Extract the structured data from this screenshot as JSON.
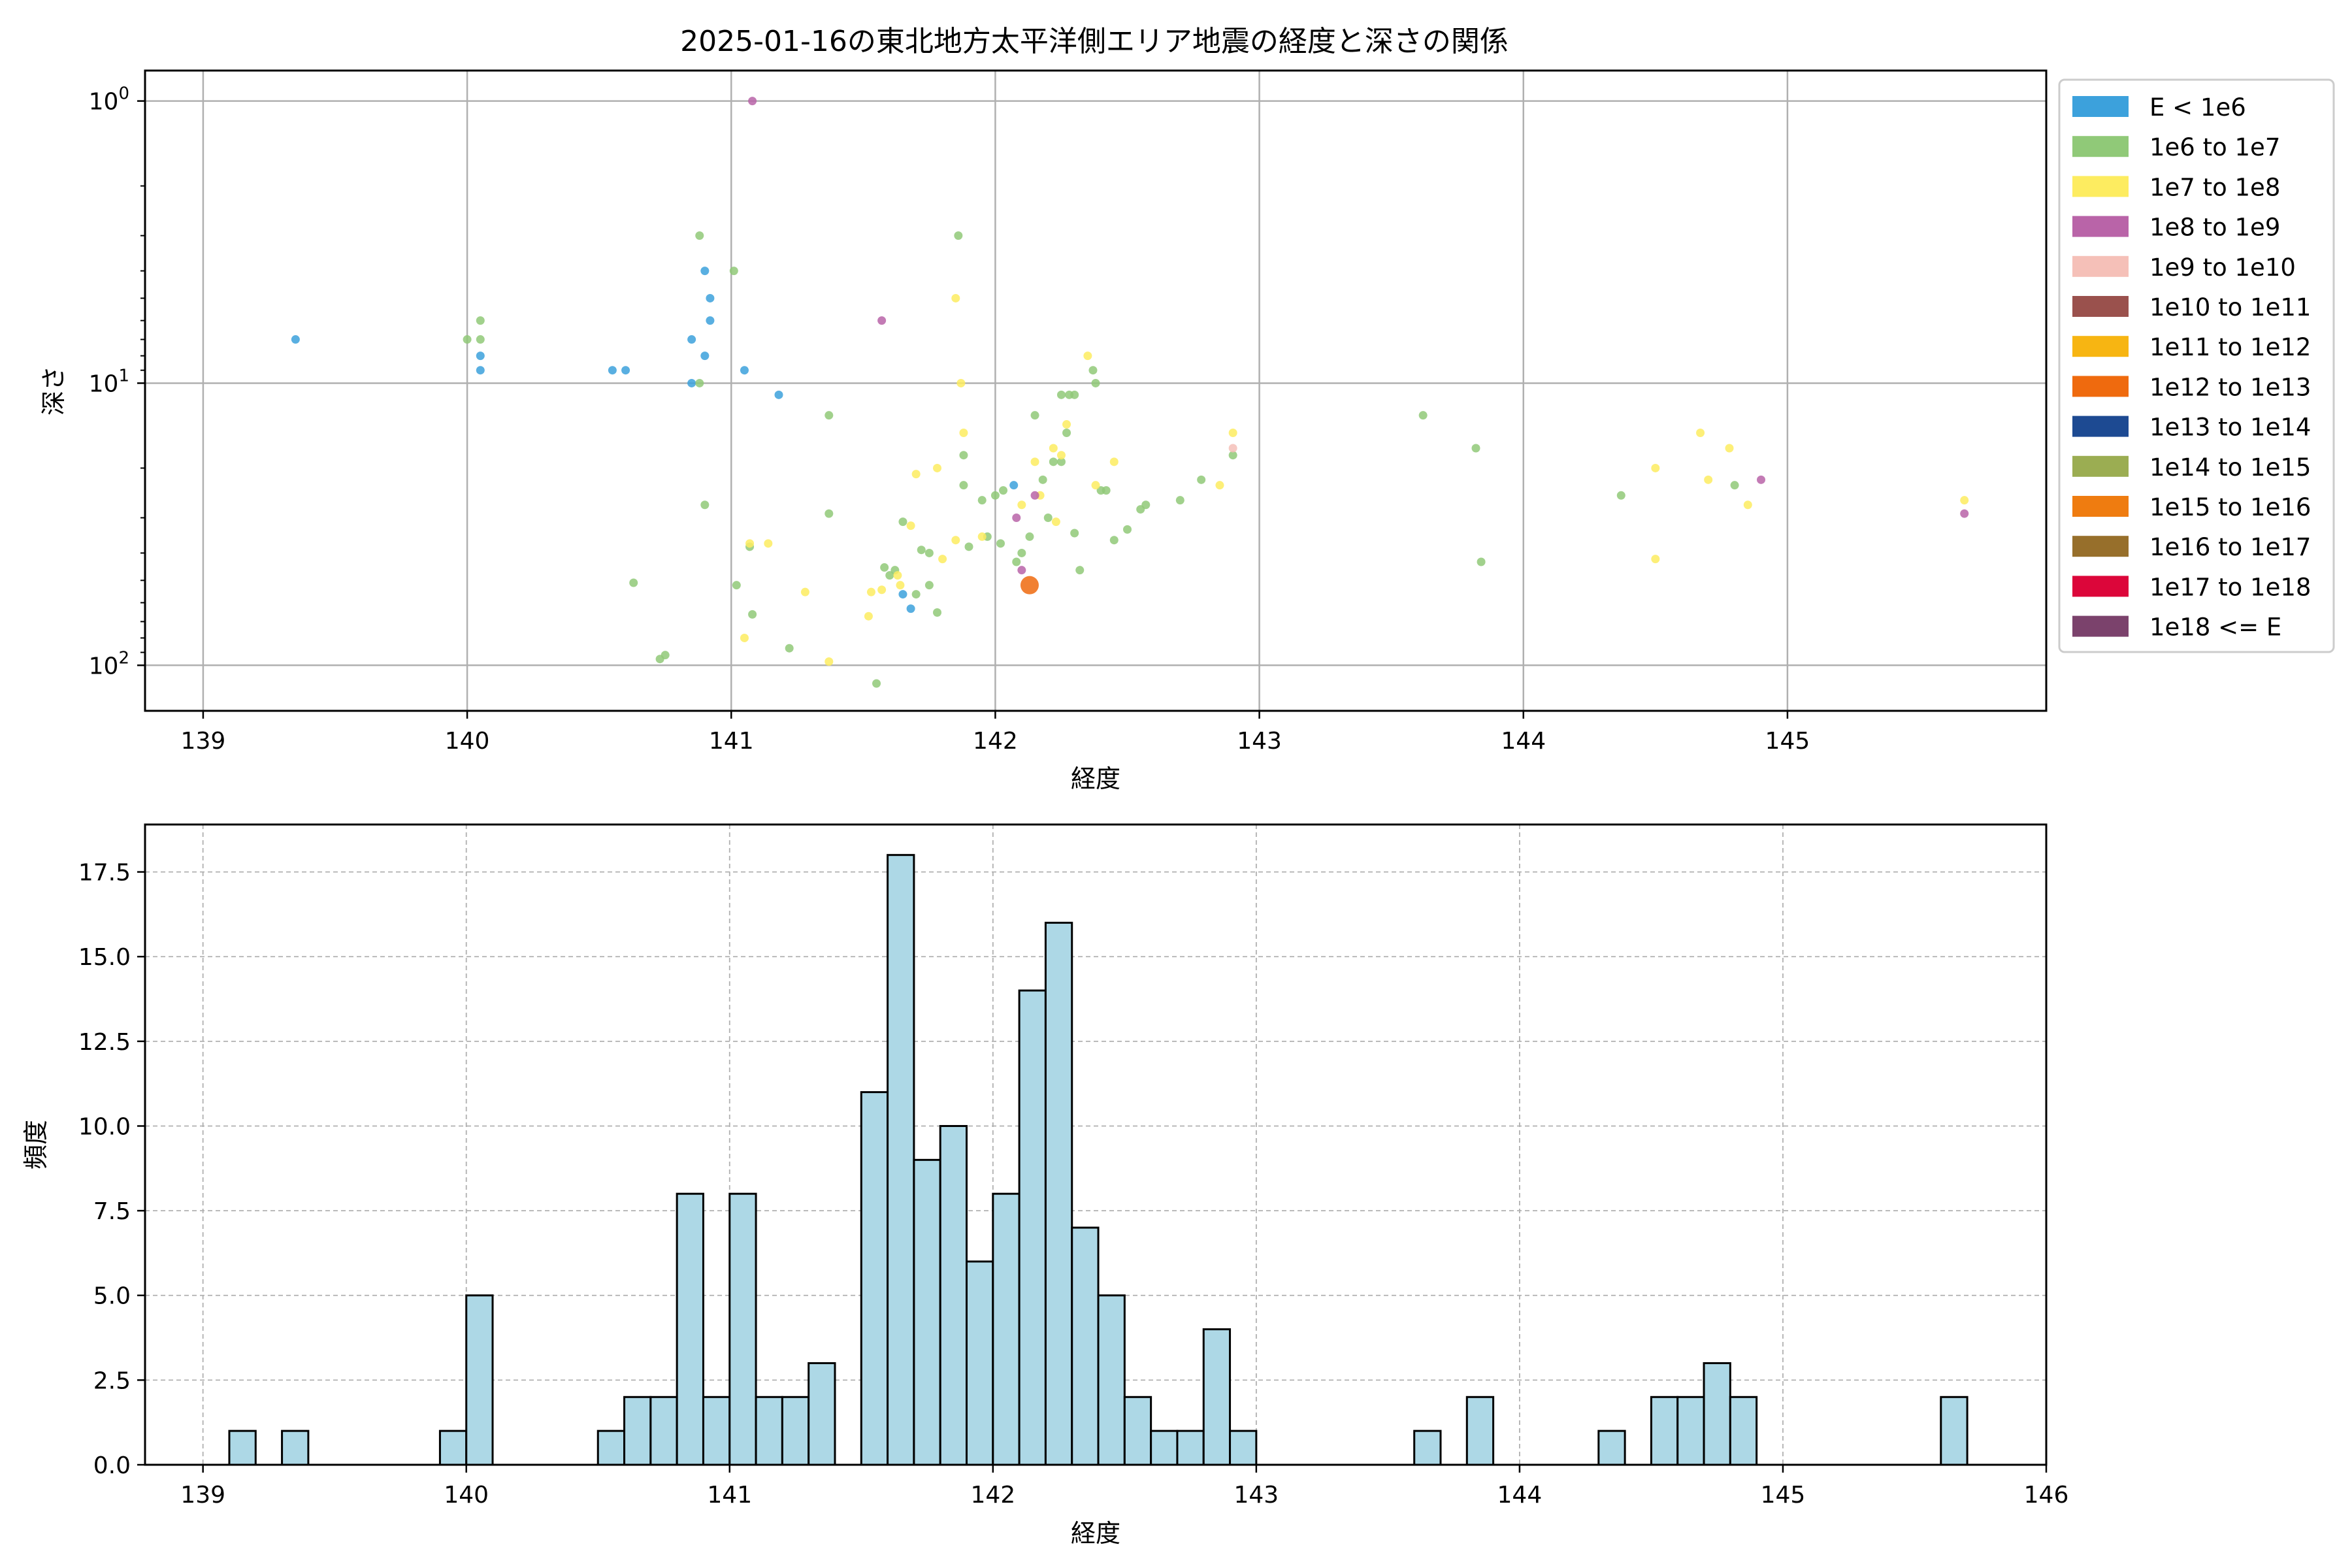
{
  "title": "2025-01-16の東北地方太平洋側エリア地震の経度と深さの関係",
  "colors": {
    "hist_fill": "#add8e6",
    "hist_edge": "#000000",
    "grid": "#b0b0b0",
    "axis": "#000000"
  },
  "chart_data": [
    {
      "type": "scatter",
      "xlabel": "経度",
      "ylabel": "深さ",
      "yscale": "log",
      "yinverted": true,
      "xlim": [
        138.78,
        145.98
      ],
      "ylim": [
        145,
        0.78
      ],
      "xticks": [
        139,
        140,
        141,
        142,
        143,
        144,
        145
      ],
      "yticks": [
        {
          "value": 1,
          "base": "10",
          "exp": "0"
        },
        {
          "value": 10,
          "base": "10",
          "exp": "1"
        },
        {
          "value": 100,
          "base": "10",
          "exp": "2"
        }
      ],
      "grid": true,
      "legend": {
        "placement": "outside-right",
        "entries": [
          {
            "label": "E < 1e6",
            "color": "#3ca1dc"
          },
          {
            "label": "1e6 to 1e7",
            "color": "#90c978"
          },
          {
            "label": "1e7 to 1e8",
            "color": "#fdec60"
          },
          {
            "label": "1e8 to 1e9",
            "color": "#b964a8"
          },
          {
            "label": "1e9 to 1e10",
            "color": "#f5c0b8"
          },
          {
            "label": "1e10 to 1e11",
            "color": "#9a514d"
          },
          {
            "label": "1e11 to 1e12",
            "color": "#f7b512"
          },
          {
            "label": "1e12 to 1e13",
            "color": "#ef6a0e"
          },
          {
            "label": "1e13 to 1e14",
            "color": "#1d4a92"
          },
          {
            "label": "1e14 to 1e15",
            "color": "#9bad52"
          },
          {
            "label": "1e15 to 1e16",
            "color": "#ef7c10"
          },
          {
            "label": "1e16 to 1e17",
            "color": "#976f2b"
          },
          {
            "label": "1e17 to 1e18",
            "color": "#dc063a"
          },
          {
            "label": "1e18 <= E",
            "color": "#7b426c"
          }
        ]
      },
      "points": [
        {
          "x": 139.35,
          "y": 7,
          "c": 0
        },
        {
          "x": 140.05,
          "y": 8,
          "c": 0
        },
        {
          "x": 140.05,
          "y": 9,
          "c": 0
        },
        {
          "x": 140.55,
          "y": 9,
          "c": 0
        },
        {
          "x": 140.6,
          "y": 9,
          "c": 0
        },
        {
          "x": 140.85,
          "y": 7,
          "c": 0
        },
        {
          "x": 140.85,
          "y": 10,
          "c": 0
        },
        {
          "x": 140.9,
          "y": 4,
          "c": 0
        },
        {
          "x": 140.92,
          "y": 5,
          "c": 0
        },
        {
          "x": 140.92,
          "y": 6,
          "c": 0
        },
        {
          "x": 140.9,
          "y": 8,
          "c": 0
        },
        {
          "x": 141.05,
          "y": 9,
          "c": 0
        },
        {
          "x": 141.18,
          "y": 11,
          "c": 0
        },
        {
          "x": 142.07,
          "y": 23,
          "c": 0
        },
        {
          "x": 141.65,
          "y": 56,
          "c": 0
        },
        {
          "x": 141.68,
          "y": 63,
          "c": 0
        },
        {
          "x": 140.0,
          "y": 7,
          "c": 1
        },
        {
          "x": 140.05,
          "y": 6,
          "c": 1
        },
        {
          "x": 140.05,
          "y": 7,
          "c": 1
        },
        {
          "x": 140.88,
          "y": 3,
          "c": 1
        },
        {
          "x": 141.01,
          "y": 4,
          "c": 1
        },
        {
          "x": 141.86,
          "y": 3,
          "c": 1
        },
        {
          "x": 140.88,
          "y": 10,
          "c": 1
        },
        {
          "x": 140.9,
          "y": 27,
          "c": 1
        },
        {
          "x": 140.63,
          "y": 51,
          "c": 1
        },
        {
          "x": 141.02,
          "y": 52,
          "c": 1
        },
        {
          "x": 141.07,
          "y": 38,
          "c": 1
        },
        {
          "x": 141.08,
          "y": 66,
          "c": 1
        },
        {
          "x": 141.22,
          "y": 87,
          "c": 1
        },
        {
          "x": 140.73,
          "y": 95,
          "c": 1
        },
        {
          "x": 140.75,
          "y": 92,
          "c": 1
        },
        {
          "x": 141.37,
          "y": 13,
          "c": 1
        },
        {
          "x": 141.37,
          "y": 29,
          "c": 1
        },
        {
          "x": 141.55,
          "y": 116,
          "c": 1
        },
        {
          "x": 141.58,
          "y": 45,
          "c": 1
        },
        {
          "x": 141.6,
          "y": 48,
          "c": 1
        },
        {
          "x": 141.62,
          "y": 46,
          "c": 1
        },
        {
          "x": 141.65,
          "y": 31,
          "c": 1
        },
        {
          "x": 141.7,
          "y": 56,
          "c": 1
        },
        {
          "x": 141.72,
          "y": 39,
          "c": 1
        },
        {
          "x": 141.75,
          "y": 40,
          "c": 1
        },
        {
          "x": 141.75,
          "y": 52,
          "c": 1
        },
        {
          "x": 141.78,
          "y": 65,
          "c": 1
        },
        {
          "x": 141.88,
          "y": 18,
          "c": 1
        },
        {
          "x": 141.88,
          "y": 23,
          "c": 1
        },
        {
          "x": 141.9,
          "y": 38,
          "c": 1
        },
        {
          "x": 141.95,
          "y": 26,
          "c": 1
        },
        {
          "x": 141.97,
          "y": 35,
          "c": 1
        },
        {
          "x": 142.0,
          "y": 25,
          "c": 1
        },
        {
          "x": 142.02,
          "y": 37,
          "c": 1
        },
        {
          "x": 142.03,
          "y": 24,
          "c": 1
        },
        {
          "x": 142.08,
          "y": 43,
          "c": 1
        },
        {
          "x": 142.1,
          "y": 40,
          "c": 1
        },
        {
          "x": 142.13,
          "y": 35,
          "c": 1
        },
        {
          "x": 142.15,
          "y": 13,
          "c": 1
        },
        {
          "x": 142.18,
          "y": 22,
          "c": 1
        },
        {
          "x": 142.2,
          "y": 30,
          "c": 1
        },
        {
          "x": 142.22,
          "y": 19,
          "c": 1
        },
        {
          "x": 142.25,
          "y": 11,
          "c": 1
        },
        {
          "x": 142.25,
          "y": 19,
          "c": 1
        },
        {
          "x": 142.27,
          "y": 15,
          "c": 1
        },
        {
          "x": 142.28,
          "y": 11,
          "c": 1
        },
        {
          "x": 142.3,
          "y": 11,
          "c": 1
        },
        {
          "x": 142.3,
          "y": 34,
          "c": 1
        },
        {
          "x": 142.32,
          "y": 46,
          "c": 1
        },
        {
          "x": 142.37,
          "y": 9,
          "c": 1
        },
        {
          "x": 142.38,
          "y": 10,
          "c": 1
        },
        {
          "x": 142.4,
          "y": 24,
          "c": 1
        },
        {
          "x": 142.42,
          "y": 24,
          "c": 1
        },
        {
          "x": 142.45,
          "y": 36,
          "c": 1
        },
        {
          "x": 142.5,
          "y": 33,
          "c": 1
        },
        {
          "x": 142.55,
          "y": 28,
          "c": 1
        },
        {
          "x": 142.57,
          "y": 27,
          "c": 1
        },
        {
          "x": 142.7,
          "y": 26,
          "c": 1
        },
        {
          "x": 142.78,
          "y": 22,
          "c": 1
        },
        {
          "x": 142.9,
          "y": 18,
          "c": 1
        },
        {
          "x": 143.62,
          "y": 13,
          "c": 1
        },
        {
          "x": 143.82,
          "y": 17,
          "c": 1
        },
        {
          "x": 143.84,
          "y": 43,
          "c": 1
        },
        {
          "x": 144.37,
          "y": 25,
          "c": 1
        },
        {
          "x": 144.8,
          "y": 23,
          "c": 1
        },
        {
          "x": 141.07,
          "y": 37,
          "c": 2
        },
        {
          "x": 141.14,
          "y": 37,
          "c": 2
        },
        {
          "x": 141.05,
          "y": 80,
          "c": 2
        },
        {
          "x": 141.28,
          "y": 55,
          "c": 2
        },
        {
          "x": 141.37,
          "y": 97,
          "c": 2
        },
        {
          "x": 141.52,
          "y": 67,
          "c": 2
        },
        {
          "x": 141.53,
          "y": 55,
          "c": 2
        },
        {
          "x": 141.57,
          "y": 54,
          "c": 2
        },
        {
          "x": 141.63,
          "y": 48,
          "c": 2
        },
        {
          "x": 141.64,
          "y": 52,
          "c": 2
        },
        {
          "x": 141.68,
          "y": 32,
          "c": 2
        },
        {
          "x": 141.7,
          "y": 21,
          "c": 2
        },
        {
          "x": 141.78,
          "y": 20,
          "c": 2
        },
        {
          "x": 141.8,
          "y": 42,
          "c": 2
        },
        {
          "x": 141.85,
          "y": 36,
          "c": 2
        },
        {
          "x": 141.85,
          "y": 5,
          "c": 2
        },
        {
          "x": 141.87,
          "y": 10,
          "c": 2
        },
        {
          "x": 141.88,
          "y": 15,
          "c": 2
        },
        {
          "x": 141.95,
          "y": 35,
          "c": 2
        },
        {
          "x": 142.1,
          "y": 27,
          "c": 2
        },
        {
          "x": 142.15,
          "y": 19,
          "c": 2
        },
        {
          "x": 142.17,
          "y": 25,
          "c": 2
        },
        {
          "x": 142.22,
          "y": 17,
          "c": 2
        },
        {
          "x": 142.23,
          "y": 31,
          "c": 2
        },
        {
          "x": 142.25,
          "y": 18,
          "c": 2
        },
        {
          "x": 142.27,
          "y": 14,
          "c": 2
        },
        {
          "x": 142.35,
          "y": 8,
          "c": 2
        },
        {
          "x": 142.38,
          "y": 23,
          "c": 2
        },
        {
          "x": 142.45,
          "y": 19,
          "c": 2
        },
        {
          "x": 142.85,
          "y": 23,
          "c": 2
        },
        {
          "x": 142.9,
          "y": 15,
          "c": 2
        },
        {
          "x": 144.5,
          "y": 20,
          "c": 2
        },
        {
          "x": 144.5,
          "y": 42,
          "c": 2
        },
        {
          "x": 144.67,
          "y": 15,
          "c": 2
        },
        {
          "x": 144.7,
          "y": 22,
          "c": 2
        },
        {
          "x": 144.78,
          "y": 17,
          "c": 2
        },
        {
          "x": 144.85,
          "y": 27,
          "c": 2
        },
        {
          "x": 145.67,
          "y": 26,
          "c": 2
        },
        {
          "x": 141.08,
          "y": 1,
          "c": 3
        },
        {
          "x": 141.57,
          "y": 6,
          "c": 3
        },
        {
          "x": 142.08,
          "y": 30,
          "c": 3
        },
        {
          "x": 142.1,
          "y": 46,
          "c": 3
        },
        {
          "x": 142.15,
          "y": 25,
          "c": 3
        },
        {
          "x": 144.9,
          "y": 22,
          "c": 3
        },
        {
          "x": 145.67,
          "y": 29,
          "c": 3
        },
        {
          "x": 142.9,
          "y": 17,
          "c": 4
        },
        {
          "x": 142.13,
          "y": 52,
          "c": 7,
          "large": true
        }
      ]
    },
    {
      "type": "bar",
      "subtype": "histogram",
      "xlabel": "経度",
      "ylabel": "頻度",
      "xlim": [
        138.78,
        146.0
      ],
      "ylim": [
        0,
        18.9
      ],
      "xticks": [
        139,
        140,
        141,
        142,
        143,
        144,
        145,
        146
      ],
      "yticks": [
        0.0,
        2.5,
        5.0,
        7.5,
        10.0,
        12.5,
        15.0,
        17.5
      ],
      "grid": true,
      "bin_width": 0.1,
      "bins": [
        {
          "x0": 139.1,
          "count": 1
        },
        {
          "x0": 139.3,
          "count": 1
        },
        {
          "x0": 139.9,
          "count": 1
        },
        {
          "x0": 140.0,
          "count": 5
        },
        {
          "x0": 140.5,
          "count": 1
        },
        {
          "x0": 140.6,
          "count": 2
        },
        {
          "x0": 140.7,
          "count": 2
        },
        {
          "x0": 140.8,
          "count": 8
        },
        {
          "x0": 140.9,
          "count": 2
        },
        {
          "x0": 141.0,
          "count": 8
        },
        {
          "x0": 141.1,
          "count": 2
        },
        {
          "x0": 141.2,
          "count": 2
        },
        {
          "x0": 141.3,
          "count": 3
        },
        {
          "x0": 141.5,
          "count": 11
        },
        {
          "x0": 141.6,
          "count": 18
        },
        {
          "x0": 141.7,
          "count": 9
        },
        {
          "x0": 141.8,
          "count": 10
        },
        {
          "x0": 141.9,
          "count": 6
        },
        {
          "x0": 142.0,
          "count": 8
        },
        {
          "x0": 142.1,
          "count": 14
        },
        {
          "x0": 142.2,
          "count": 16
        },
        {
          "x0": 142.3,
          "count": 7
        },
        {
          "x0": 142.4,
          "count": 5
        },
        {
          "x0": 142.5,
          "count": 2
        },
        {
          "x0": 142.6,
          "count": 1
        },
        {
          "x0": 142.7,
          "count": 1
        },
        {
          "x0": 142.8,
          "count": 4
        },
        {
          "x0": 142.9,
          "count": 1
        },
        {
          "x0": 143.6,
          "count": 1
        },
        {
          "x0": 143.8,
          "count": 2
        },
        {
          "x0": 144.3,
          "count": 1
        },
        {
          "x0": 144.5,
          "count": 2
        },
        {
          "x0": 144.6,
          "count": 2
        },
        {
          "x0": 144.7,
          "count": 3
        },
        {
          "x0": 144.8,
          "count": 2
        },
        {
          "x0": 145.6,
          "count": 2
        }
      ]
    }
  ]
}
